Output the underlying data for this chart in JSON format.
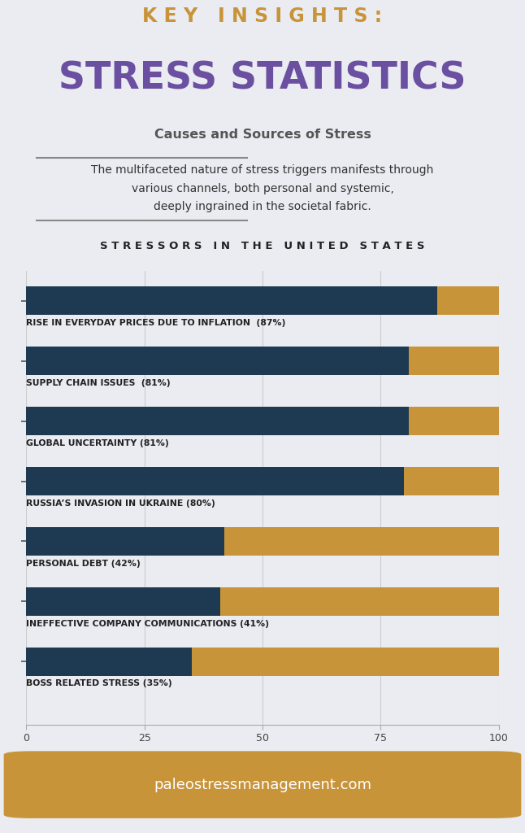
{
  "background_color": "#eaecf2",
  "title_line1": "K E Y   I N S I G H T S :",
  "title_line1_color": "#c8943a",
  "title_line2": "STRESS STATISTICS",
  "title_line2_color": "#6b4fa0",
  "subtitle": "Causes and Sources of Stress",
  "subtitle_color": "#555555",
  "description": "The multifaceted nature of stress triggers manifests through\nvarious channels, both personal and systemic,\ndeeply ingrained in the societal fabric.",
  "description_color": "#333333",
  "section_title": "S T R E S S O R S   I N   T H E   U N I T E D   S T A T E S",
  "section_title_color": "#222222",
  "categories": [
    "RISE IN EVERYDAY PRICES DUE TO INFLATION  (87%)",
    "SUPPLY CHAIN ISSUES  (81%)",
    "GLOBAL UNCERTAINTY (81%)",
    "RUSSIA’S INVASION IN UKRAINE (80%)",
    "PERSONAL DEBT (42%)",
    "INEFFECTIVE COMPANY COMMUNICATIONS (41%)",
    "BOSS RELATED STRESS (35%)"
  ],
  "values": [
    87,
    81,
    81,
    80,
    42,
    41,
    35
  ],
  "bar_color_dark": "#1e3a52",
  "bar_color_light": "#c8943a",
  "label_color": "#222222",
  "axis_color": "#444444",
  "footer_text": "paleostressmanagement.com",
  "footer_bg": "#c8943a",
  "footer_text_color": "#ffffff"
}
